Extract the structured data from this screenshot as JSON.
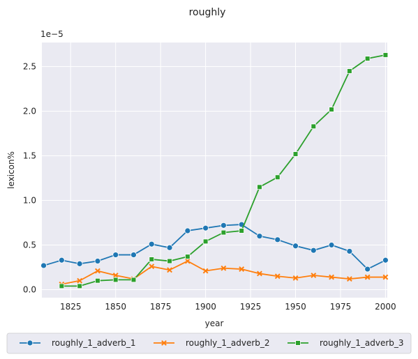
{
  "chart_data": {
    "type": "line",
    "title": "roughly",
    "xlabel": "year",
    "ylabel": "lexicon%",
    "y_scale_label": "1e−5",
    "xlim": [
      1809,
      2001
    ],
    "ylim": [
      -0.09,
      2.77
    ],
    "x_ticks": [
      1825,
      1850,
      1875,
      1900,
      1925,
      1950,
      1975,
      2000
    ],
    "y_ticks": [
      0.0,
      0.5,
      1.0,
      1.5,
      2.0,
      2.5
    ],
    "y_tick_labels": [
      "0.0",
      "0.5",
      "1.0",
      "1.5",
      "2.0",
      "2.5"
    ],
    "grid": true,
    "background": "#eaeaf2",
    "legend_position": "bottom-outside",
    "series": [
      {
        "name": "roughly_1_adverb_1",
        "color": "#1f77b4",
        "marker": "circle",
        "x": [
          1810,
          1820,
          1830,
          1840,
          1850,
          1860,
          1870,
          1880,
          1890,
          1900,
          1910,
          1920,
          1930,
          1940,
          1950,
          1960,
          1970,
          1980,
          1990,
          2000
        ],
        "y": [
          0.27,
          0.33,
          0.29,
          0.32,
          0.39,
          0.39,
          0.51,
          0.47,
          0.66,
          0.69,
          0.72,
          0.73,
          0.6,
          0.56,
          0.49,
          0.44,
          0.5,
          0.43,
          0.23,
          0.33
        ]
      },
      {
        "name": "roughly_1_adverb_2",
        "color": "#ff7f0e",
        "marker": "x",
        "x": [
          1820,
          1830,
          1840,
          1850,
          1860,
          1870,
          1880,
          1890,
          1900,
          1910,
          1920,
          1930,
          1940,
          1950,
          1960,
          1970,
          1980,
          1990,
          2000
        ],
        "y": [
          0.06,
          0.1,
          0.21,
          0.16,
          0.12,
          0.26,
          0.22,
          0.32,
          0.21,
          0.24,
          0.23,
          0.18,
          0.15,
          0.13,
          0.16,
          0.14,
          0.12,
          0.14,
          0.14
        ]
      },
      {
        "name": "roughly_1_adverb_3",
        "color": "#2ca02c",
        "marker": "square",
        "x": [
          1820,
          1830,
          1840,
          1850,
          1860,
          1870,
          1880,
          1890,
          1900,
          1910,
          1920,
          1930,
          1940,
          1950,
          1960,
          1970,
          1980,
          1990,
          2000
        ],
        "y": [
          0.04,
          0.04,
          0.1,
          0.11,
          0.11,
          0.34,
          0.32,
          0.37,
          0.54,
          0.64,
          0.66,
          1.15,
          1.26,
          1.52,
          1.83,
          2.02,
          2.45,
          2.59,
          2.63
        ]
      }
    ]
  }
}
